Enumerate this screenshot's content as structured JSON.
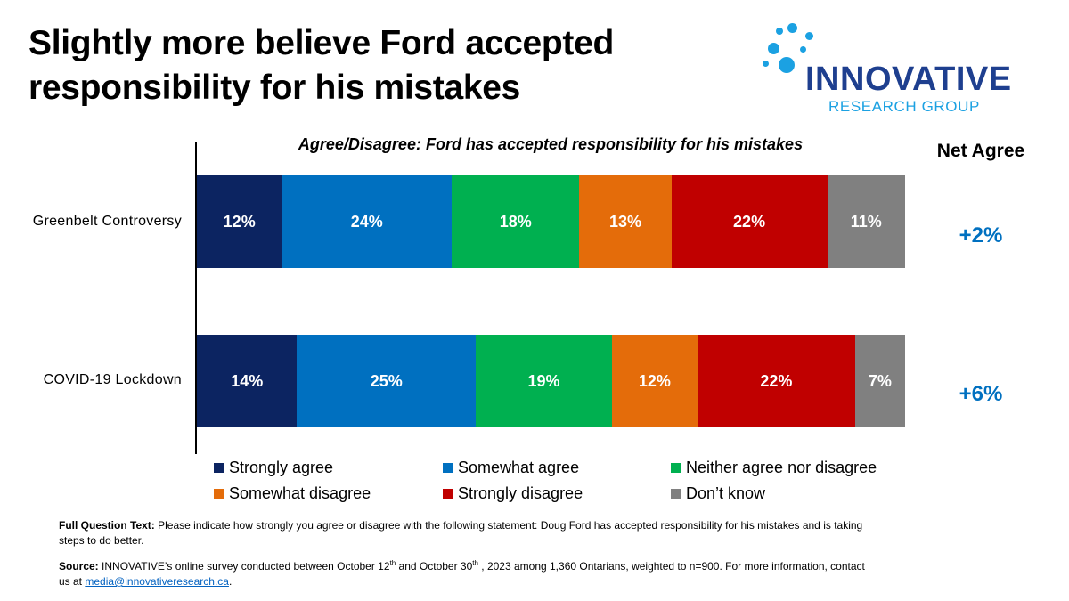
{
  "title": "Slightly more believe Ford accepted responsibility for his mistakes",
  "logo": {
    "name": "INNOVATIVE",
    "sub": "RESEARCH GROUP"
  },
  "net_header": "Net Agree",
  "colors": {
    "strongly_agree": "#0c2461",
    "somewhat_agree": "#0070c0",
    "neither": "#00b050",
    "somewhat_disagree": "#e46c0a",
    "strongly_disagree": "#c00000",
    "dont_know": "#808080",
    "net": "#0070c0"
  },
  "chart_data": {
    "type": "bar",
    "orientation": "horizontal-stacked-100",
    "title": "Agree/Disagree: Ford has accepted responsibility for his mistakes",
    "categories": [
      "Greenbelt Controversy",
      "COVID-19 Lockdown"
    ],
    "series": [
      {
        "name": "Strongly agree",
        "values": [
          12,
          14
        ]
      },
      {
        "name": "Somewhat agree",
        "values": [
          24,
          25
        ]
      },
      {
        "name": "Neither agree nor disagree",
        "values": [
          18,
          19
        ]
      },
      {
        "name": "Somewhat disagree",
        "values": [
          13,
          12
        ]
      },
      {
        "name": "Strongly disagree",
        "values": [
          22,
          22
        ]
      },
      {
        "name": "Don’t know",
        "values": [
          11,
          7
        ]
      }
    ],
    "net_agree": [
      "+2%",
      "+6%"
    ],
    "legend_position": "bottom"
  },
  "footnote": {
    "question_label": "Full Question Text:",
    "question_text": "Please indicate how strongly you agree or disagree with the following statement: Doug Ford has accepted responsibility for his mistakes and is taking steps to do better.",
    "source_label": "Source:",
    "source_p1": "INNOVATIVE’s online survey conducted between October 12",
    "source_sup1": "th",
    "source_p2": " and October 30",
    "source_sup2": "th",
    "source_p3": " , 2023  among 1,360  Ontarians, weighted to n=900. For more information, contact us at ",
    "source_link": "media@innovativeresearch.ca",
    "source_end": "."
  }
}
